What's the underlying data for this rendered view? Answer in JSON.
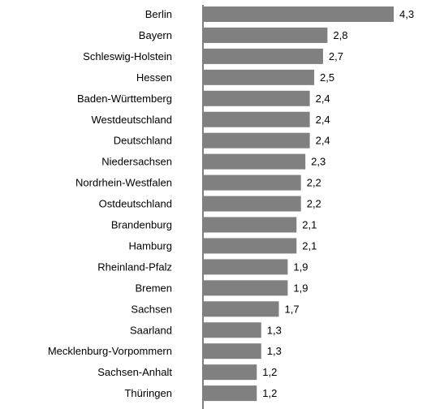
{
  "chart_data": {
    "type": "bar",
    "orientation": "horizontal",
    "title": "",
    "xlabel": "",
    "ylabel": "",
    "grid": false,
    "xlim": [
      0,
      4.3
    ],
    "bar_color": "#808080",
    "categories": [
      "Berlin",
      "Bayern",
      "Schleswig-Holstein",
      "Hessen",
      "Baden-Württemberg",
      "Westdeutschland",
      "Deutschland",
      "Niedersachsen",
      "Nordrhein-Westfalen",
      "Ostdeutschland",
      "Brandenburg",
      "Hamburg",
      "Rheinland-Pfalz",
      "Bremen",
      "Sachsen",
      "Saarland",
      "Mecklenburg-Vorpommern",
      "Sachsen-Anhalt",
      "Thüringen"
    ],
    "values": [
      4.3,
      2.8,
      2.7,
      2.5,
      2.4,
      2.4,
      2.4,
      2.3,
      2.2,
      2.2,
      2.1,
      2.1,
      1.9,
      1.9,
      1.7,
      1.3,
      1.3,
      1.2,
      1.2
    ],
    "value_labels": [
      "4,3",
      "2,8",
      "2,7",
      "2,5",
      "2,4",
      "2,4",
      "2,4",
      "2,3",
      "2,2",
      "2,2",
      "2,1",
      "2,1",
      "1,9",
      "1,9",
      "1,7",
      "1,3",
      "1,3",
      "1,2",
      "1,2"
    ]
  }
}
